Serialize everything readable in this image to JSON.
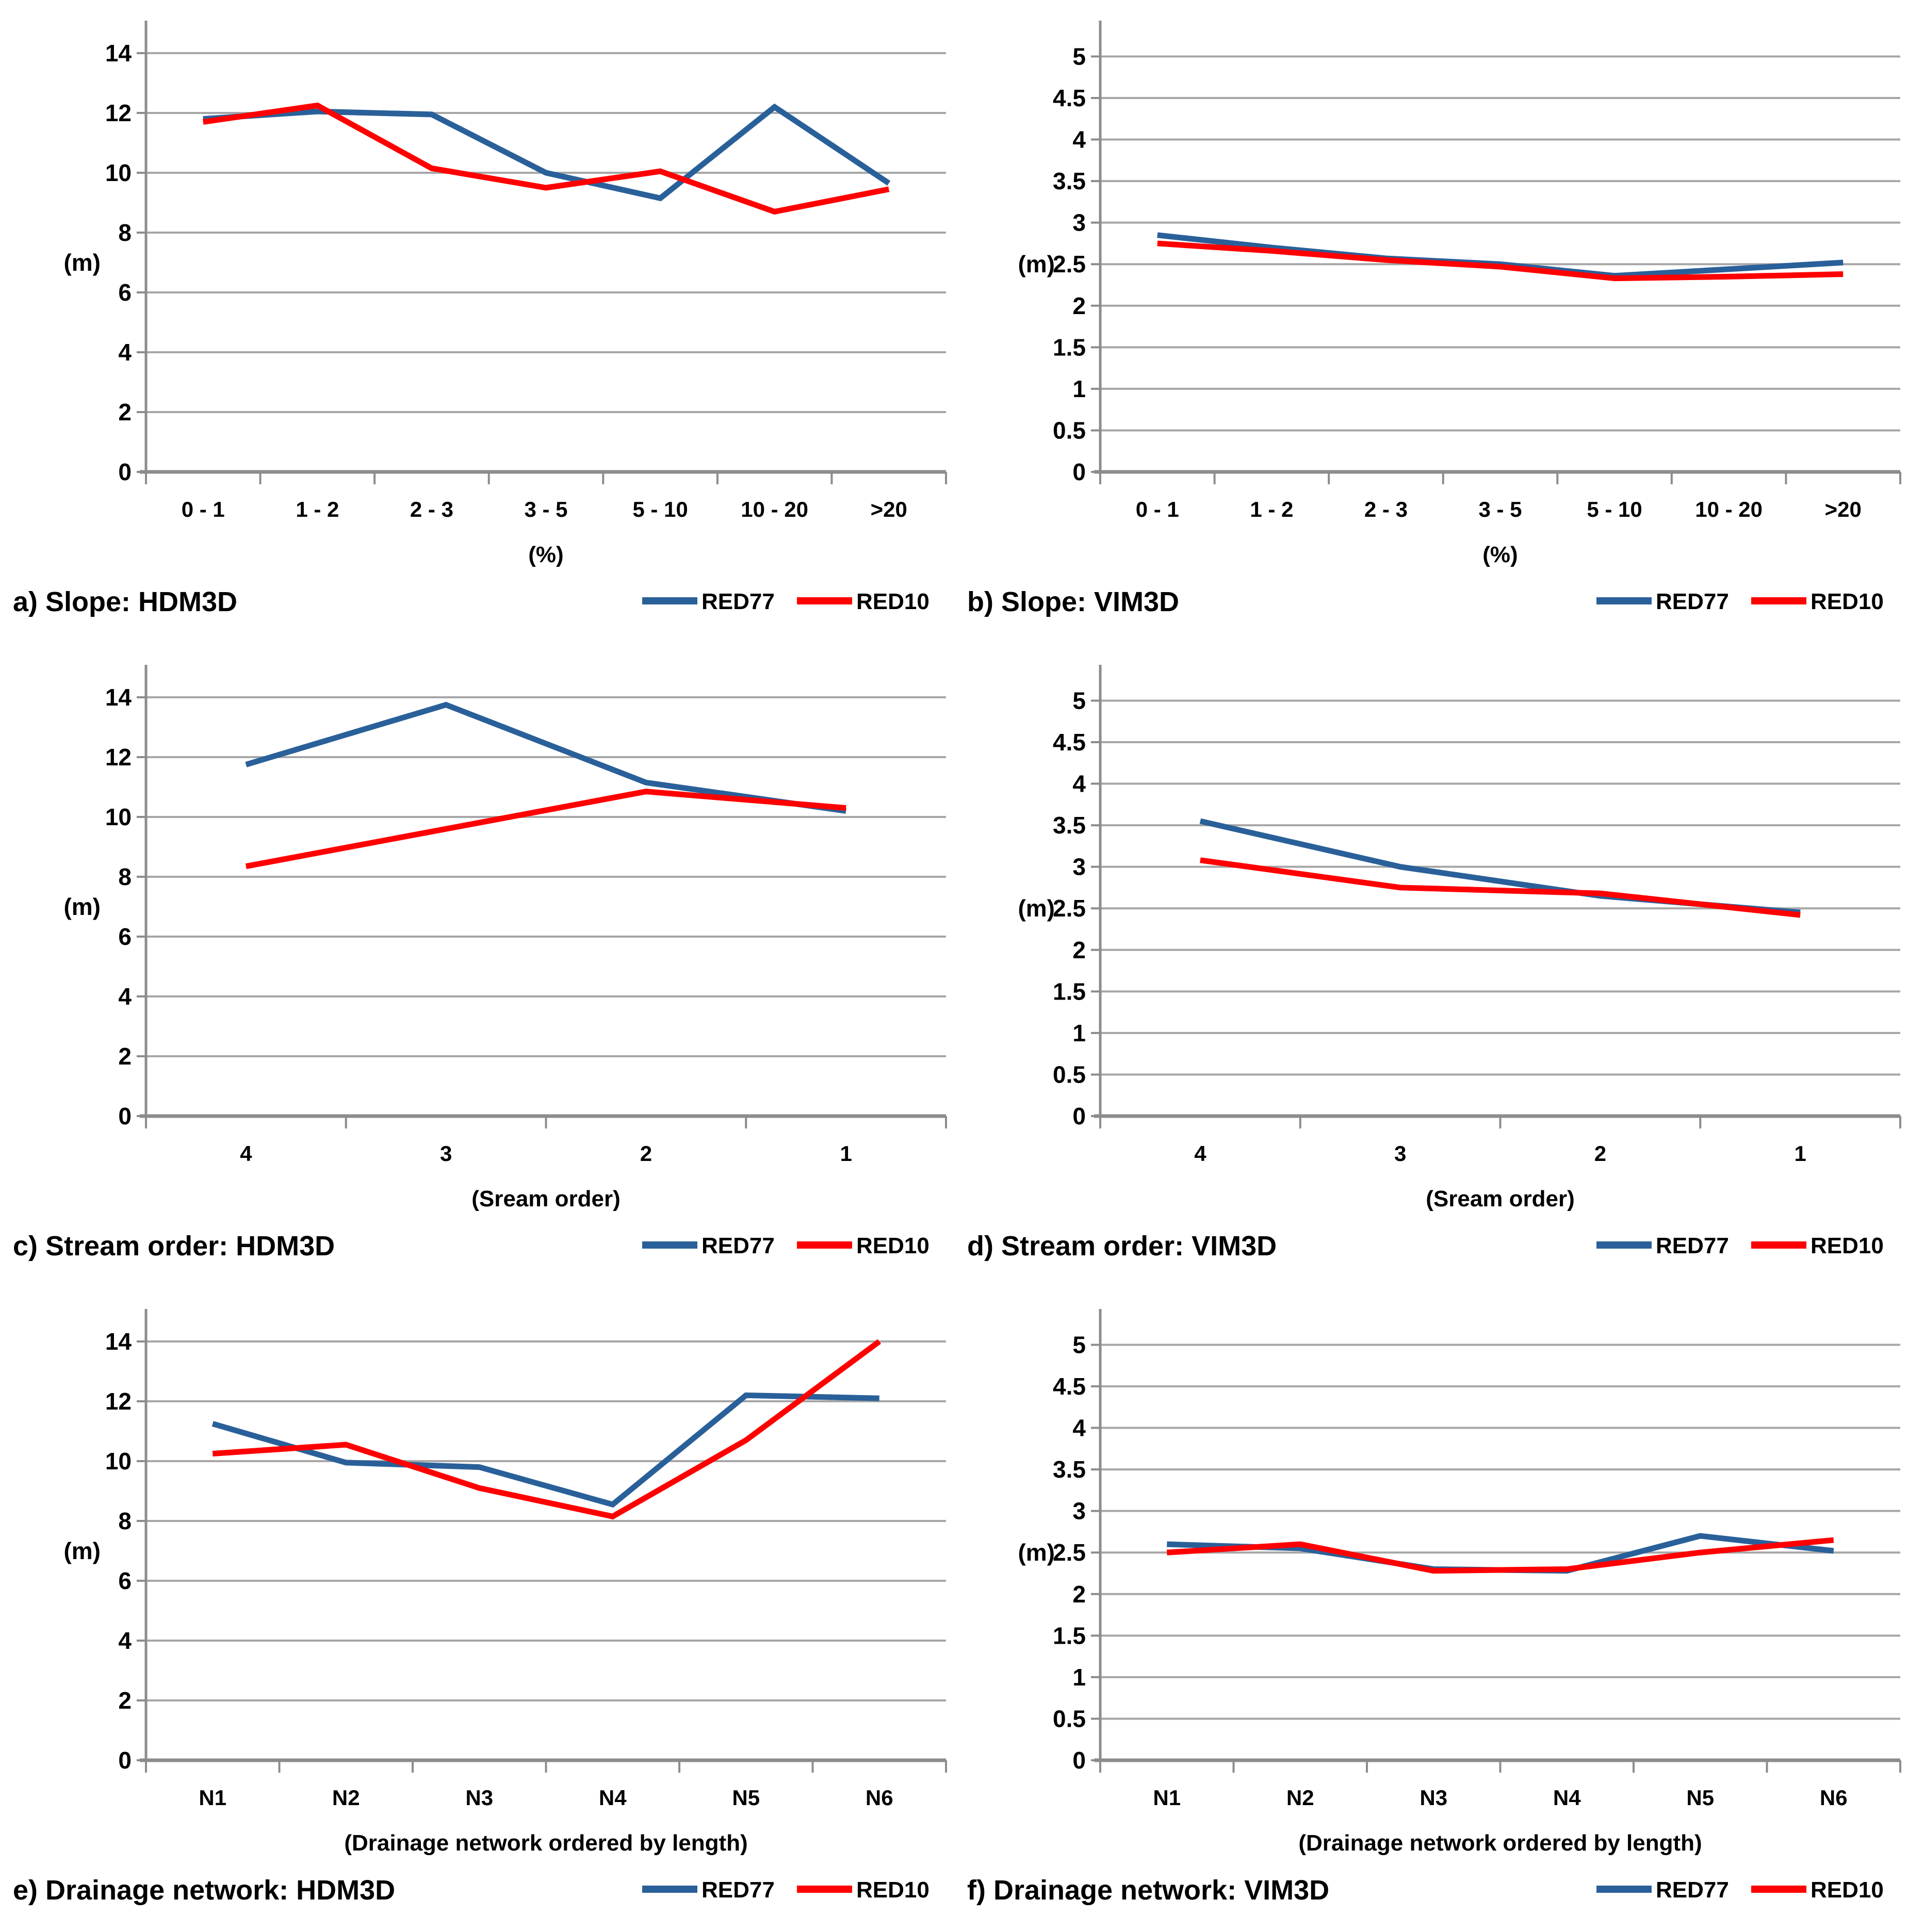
{
  "figure": {
    "background": "#ffffff",
    "gridline_color": "#A6A6A6",
    "axis_color": "#8C8C8C",
    "text_color": "#000000"
  },
  "legend": {
    "entries": [
      {
        "label": "RED77",
        "color": "#2A6099"
      },
      {
        "label": "RED10",
        "color": "#FF0000"
      }
    ],
    "position": "bottom-right-of-each-panel"
  },
  "chart_data": [
    {
      "id": "a",
      "type": "line",
      "caption": "a) Slope: HDM3D",
      "xlabel": "(%)",
      "ylabel": "(m)",
      "categories": [
        "0 - 1",
        "1 - 2",
        "2 - 3",
        "3 - 5",
        "5 - 10",
        "10 - 20",
        ">20"
      ],
      "ylim": [
        0,
        14
      ],
      "ymax_display": 15,
      "ytick_labels": [
        "0",
        "2",
        "4",
        "6",
        "8",
        "10",
        "12",
        "14"
      ],
      "ylabel_at": 7,
      "grid": true,
      "series": [
        {
          "name": "RED77",
          "color": "#2A6099",
          "values": [
            11.8,
            12.05,
            11.95,
            10.0,
            9.15,
            12.2,
            9.65
          ]
        },
        {
          "name": "RED10",
          "color": "#FF0000",
          "values": [
            11.7,
            12.25,
            10.15,
            9.5,
            10.05,
            8.7,
            9.45
          ]
        }
      ]
    },
    {
      "id": "b",
      "type": "line",
      "caption": "b) Slope: VIM3D",
      "xlabel": "(%)",
      "ylabel": "(m)",
      "categories": [
        "0 - 1",
        "1 - 2",
        "2 - 3",
        "3 - 5",
        "5 - 10",
        "10 - 20",
        ">20"
      ],
      "ylim": [
        0,
        5
      ],
      "ymax_display": 5.4,
      "ytick_labels": [
        "0",
        "0.5",
        "1",
        "1.5",
        "2",
        "2.5",
        "3",
        "3.5",
        "4",
        "4.5",
        "5"
      ],
      "ylabel_at": 2.5,
      "grid": true,
      "series": [
        {
          "name": "RED77",
          "color": "#2A6099",
          "values": [
            2.85,
            2.7,
            2.57,
            2.5,
            2.36,
            2.44,
            2.52
          ]
        },
        {
          "name": "RED10",
          "color": "#FF0000",
          "values": [
            2.75,
            2.66,
            2.55,
            2.47,
            2.33,
            2.35,
            2.38
          ]
        }
      ]
    },
    {
      "id": "c",
      "type": "line",
      "caption": "c) Stream order: HDM3D",
      "xlabel": "(Sream order)",
      "ylabel": "(m)",
      "categories": [
        "4",
        "3",
        "2",
        "1"
      ],
      "ylim": [
        0,
        14
      ],
      "ymax_display": 15,
      "ytick_labels": [
        "0",
        "2",
        "4",
        "6",
        "8",
        "10",
        "12",
        "14"
      ],
      "ylabel_at": 7,
      "grid": true,
      "series": [
        {
          "name": "RED77",
          "color": "#2A6099",
          "values": [
            11.75,
            13.75,
            11.15,
            10.2
          ]
        },
        {
          "name": "RED10",
          "color": "#FF0000",
          "values": [
            8.35,
            9.6,
            10.85,
            10.3
          ]
        }
      ]
    },
    {
      "id": "d",
      "type": "line",
      "caption": "d) Stream order: VIM3D",
      "xlabel": "(Sream order)",
      "ylabel": "(m)",
      "categories": [
        "4",
        "3",
        "2",
        "1"
      ],
      "ylim": [
        0,
        5
      ],
      "ymax_display": 5.4,
      "ytick_labels": [
        "0",
        "0.5",
        "1",
        "1.5",
        "2",
        "2.5",
        "3",
        "3.5",
        "4",
        "4.5",
        "5"
      ],
      "ylabel_at": 2.5,
      "grid": true,
      "series": [
        {
          "name": "RED77",
          "color": "#2A6099",
          "values": [
            3.55,
            3.0,
            2.65,
            2.45
          ]
        },
        {
          "name": "RED10",
          "color": "#FF0000",
          "values": [
            3.08,
            2.75,
            2.68,
            2.42
          ]
        }
      ]
    },
    {
      "id": "e",
      "type": "line",
      "caption": "e) Drainage network: HDM3D",
      "xlabel": "(Drainage  network ordered by length)",
      "ylabel": "(m)",
      "categories": [
        "N1",
        "N2",
        "N3",
        "N4",
        "N5",
        "N6"
      ],
      "ylim": [
        0,
        14
      ],
      "ymax_display": 15,
      "ytick_labels": [
        "0",
        "2",
        "4",
        "6",
        "8",
        "10",
        "12",
        "14"
      ],
      "ylabel_at": 7,
      "grid": true,
      "series": [
        {
          "name": "RED77",
          "color": "#2A6099",
          "values": [
            11.25,
            9.95,
            9.8,
            8.55,
            12.2,
            12.1
          ]
        },
        {
          "name": "RED10",
          "color": "#FF0000",
          "values": [
            10.25,
            10.55,
            9.1,
            8.15,
            10.7,
            14.0
          ]
        }
      ]
    },
    {
      "id": "f",
      "type": "line",
      "caption": "f) Drainage network: VIM3D",
      "xlabel": "(Drainage  network ordered by length)",
      "ylabel": "(m)",
      "categories": [
        "N1",
        "N2",
        "N3",
        "N4",
        "N5",
        "N6"
      ],
      "ylim": [
        0,
        5
      ],
      "ymax_display": 5.4,
      "ytick_labels": [
        "0",
        "0.5",
        "1",
        "1.5",
        "2",
        "2.5",
        "3",
        "3.5",
        "4",
        "4.5",
        "5"
      ],
      "ylabel_at": 2.5,
      "grid": true,
      "series": [
        {
          "name": "RED77",
          "color": "#2A6099",
          "values": [
            2.6,
            2.55,
            2.3,
            2.28,
            2.7,
            2.52
          ]
        },
        {
          "name": "RED10",
          "color": "#FF0000",
          "values": [
            2.5,
            2.6,
            2.28,
            2.3,
            2.5,
            2.65
          ]
        }
      ]
    }
  ]
}
